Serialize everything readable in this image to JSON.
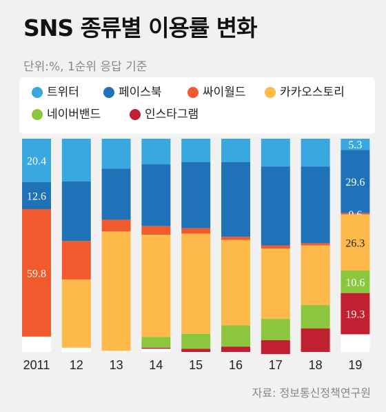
{
  "colors": {
    "트위터": "#3aa8e0",
    "페이스북": "#1f71b8",
    "싸이월드": "#f05a2d",
    "카카오스토리": "#fdb94a",
    "네이버밴드": "#8cc63f",
    "인스타그램": "#c0202f"
  },
  "chart_data": {
    "type": "bar",
    "stacked": true,
    "normalized_percent": true,
    "title": "SNS 종류별 이용률 변화",
    "subtitle": "단위:%, 1순위 응답 기준",
    "source": "자료: 정보통신정책연구원",
    "legend_position": "top",
    "categories": [
      "2011",
      "12",
      "13",
      "14",
      "15",
      "16",
      "17",
      "18",
      "19"
    ],
    "series": [
      {
        "name": "트위터",
        "values": [
          20.4,
          20.0,
          14.0,
          12.0,
          11.0,
          11.0,
          13.0,
          13.0,
          5.3
        ]
      },
      {
        "name": "페이스북",
        "values": [
          12.6,
          28.0,
          24.0,
          29.0,
          31.0,
          35.0,
          37.0,
          36.0,
          29.6
        ]
      },
      {
        "name": "싸이월드",
        "values": [
          59.8,
          18.0,
          5.5,
          4.0,
          2.5,
          1.5,
          1.5,
          1.0,
          0.6
        ]
      },
      {
        "name": "카카오스토리",
        "values": [
          0.0,
          32.0,
          56.0,
          48.0,
          47.0,
          40.0,
          33.0,
          28.0,
          26.3
        ]
      },
      {
        "name": "네이버밴드",
        "values": [
          0.0,
          0.0,
          0.0,
          5.0,
          7.0,
          10.0,
          10.0,
          11.0,
          10.6
        ]
      },
      {
        "name": "인스타그램",
        "values": [
          0.0,
          0.0,
          0.0,
          0.5,
          1.5,
          2.5,
          6.5,
          11.0,
          19.3
        ]
      }
    ],
    "data_labels": {
      "2011": {
        "트위터": "20.4",
        "페이스북": "12.6",
        "싸이월드": "59.8"
      },
      "19": {
        "트위터": "5.3",
        "페이스북": "29.6",
        "싸이월드": "0.6",
        "카카오스토리": "26.3",
        "네이버밴드": "10.6",
        "인스타그램": "19.3"
      }
    },
    "ylim": [
      0,
      100
    ]
  }
}
